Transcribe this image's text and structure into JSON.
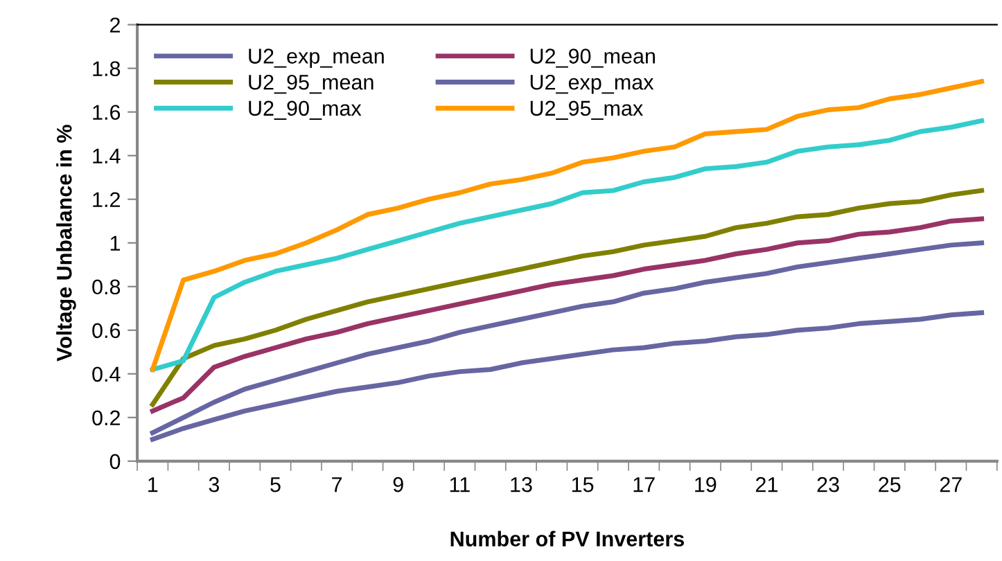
{
  "chart_data": {
    "type": "line",
    "xlabel": "Number of PV Inverters",
    "ylabel": "Voltage Unbalance in %",
    "categories": [
      "1",
      null,
      "3",
      null,
      "5",
      null,
      "7",
      null,
      "9",
      null,
      "11",
      null,
      "13",
      null,
      "15",
      null,
      "17",
      null,
      "19",
      null,
      "21",
      null,
      "23",
      null,
      "25",
      null,
      "27",
      null
    ],
    "ylim": [
      0,
      2
    ],
    "yticks": [
      0,
      0.2,
      0.4,
      0.6,
      0.8,
      1,
      1.2,
      1.4,
      1.6,
      1.8,
      2
    ],
    "grid": false,
    "legend": "top left",
    "marker": "none",
    "line_style": "solid",
    "series": [
      {
        "name": "U2_exp_mean",
        "color": "#6666a3",
        "values": [
          0.1,
          0.15,
          0.19,
          0.23,
          0.26,
          0.29,
          0.32,
          0.34,
          0.36,
          0.39,
          0.41,
          0.42,
          0.45,
          0.47,
          0.49,
          0.51,
          0.52,
          0.54,
          0.55,
          0.57,
          0.58,
          0.6,
          0.61,
          0.63,
          0.64,
          0.65,
          0.67,
          0.68
        ]
      },
      {
        "name": "U2_90_mean",
        "color": "#993366",
        "values": [
          0.23,
          0.29,
          0.43,
          0.48,
          0.52,
          0.56,
          0.59,
          0.63,
          0.66,
          0.69,
          0.72,
          0.75,
          0.78,
          0.81,
          0.83,
          0.85,
          0.88,
          0.9,
          0.92,
          0.95,
          0.97,
          1.0,
          1.01,
          1.04,
          1.05,
          1.07,
          1.1,
          1.11
        ]
      },
      {
        "name": "U2_95_mean",
        "color": "#808000",
        "values": [
          0.26,
          0.47,
          0.53,
          0.56,
          0.6,
          0.65,
          0.69,
          0.73,
          0.76,
          0.79,
          0.82,
          0.85,
          0.88,
          0.91,
          0.94,
          0.96,
          0.99,
          1.01,
          1.03,
          1.07,
          1.09,
          1.12,
          1.13,
          1.16,
          1.18,
          1.19,
          1.22,
          1.24
        ]
      },
      {
        "name": "U2_exp_max",
        "color": "#6666a3",
        "values": [
          0.13,
          0.2,
          0.27,
          0.33,
          0.37,
          0.41,
          0.45,
          0.49,
          0.52,
          0.55,
          0.59,
          0.62,
          0.65,
          0.68,
          0.71,
          0.73,
          0.77,
          0.79,
          0.82,
          0.84,
          0.86,
          0.89,
          0.91,
          0.93,
          0.95,
          0.97,
          0.99,
          1.0
        ]
      },
      {
        "name": "U2_90_max",
        "color": "#33cccc",
        "values": [
          0.42,
          0.46,
          0.75,
          0.82,
          0.87,
          0.9,
          0.93,
          0.97,
          1.01,
          1.05,
          1.09,
          1.12,
          1.15,
          1.18,
          1.23,
          1.24,
          1.28,
          1.3,
          1.34,
          1.35,
          1.37,
          1.42,
          1.44,
          1.45,
          1.47,
          1.51,
          1.53,
          1.56
        ]
      },
      {
        "name": "U2_95_max",
        "color": "#ff9900",
        "values": [
          0.42,
          0.83,
          0.87,
          0.92,
          0.95,
          1.0,
          1.06,
          1.13,
          1.16,
          1.2,
          1.23,
          1.27,
          1.29,
          1.32,
          1.37,
          1.39,
          1.42,
          1.44,
          1.5,
          1.51,
          1.52,
          1.58,
          1.61,
          1.62,
          1.66,
          1.68,
          1.71,
          1.74
        ]
      }
    ]
  }
}
